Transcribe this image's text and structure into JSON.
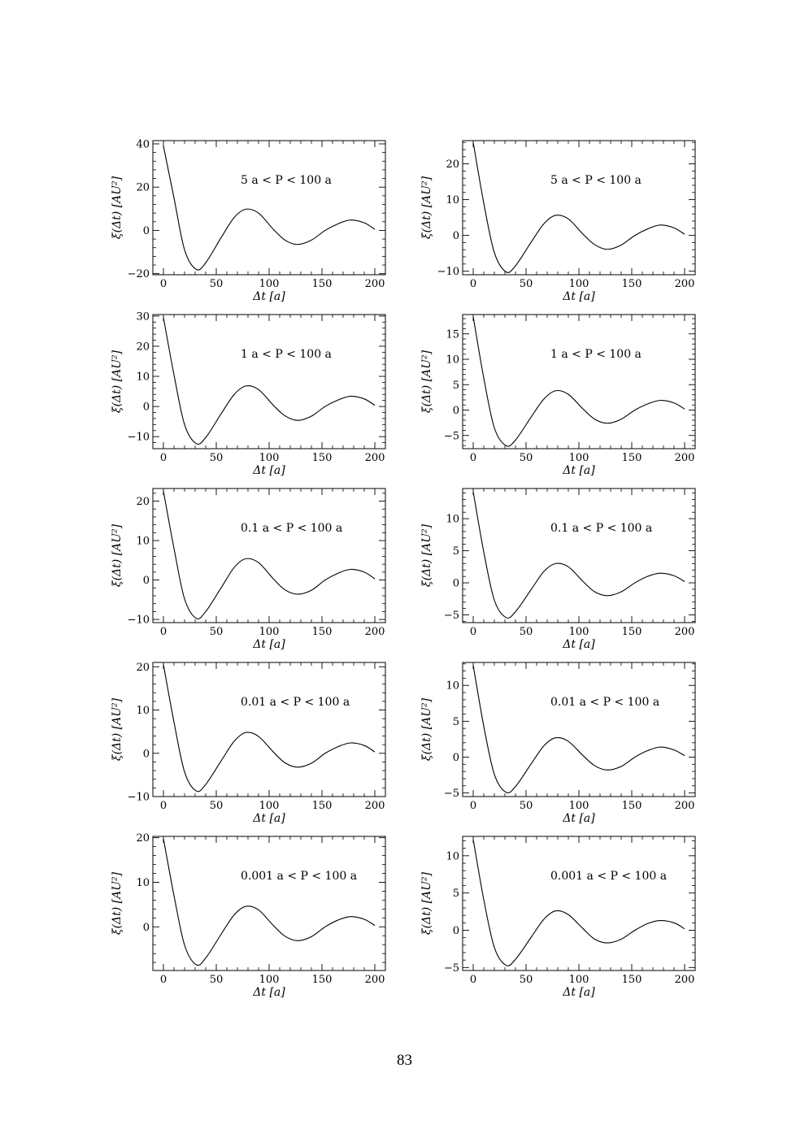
{
  "page": {
    "number": "83"
  },
  "chart_data": [
    {
      "type": "line",
      "annotation": "5 a < P < 100 a",
      "xlabel": "Δt [a]",
      "ylabel": "ξ(Δt) [AU²]",
      "xlim": [
        -10,
        210
      ],
      "ylim": [
        -20.5,
        41.5
      ],
      "xticks": [
        0,
        50,
        100,
        150,
        200
      ],
      "yticks": [
        -20,
        0,
        20,
        40
      ],
      "series": [
        {
          "x": [
            0,
            10,
            20,
            31,
            40,
            55,
            67,
            78,
            90,
            104,
            115,
            127,
            140,
            153,
            165,
            177,
            190,
            200
          ],
          "y": [
            39,
            15,
            -9,
            -18,
            -15,
            -3,
            6,
            9.8,
            8,
            0.5,
            -4.5,
            -6.5,
            -4.5,
            0,
            3,
            4.8,
            3.5,
            0.5
          ]
        }
      ]
    },
    {
      "type": "line",
      "annotation": "5 a < P < 100 a",
      "xlabel": "Δt [a]",
      "ylabel": "ξ(Δt) [AU²]",
      "xlim": [
        -10,
        210
      ],
      "ylim": [
        -11,
        26.5
      ],
      "xticks": [
        0,
        50,
        100,
        150,
        200
      ],
      "yticks": [
        -10,
        0,
        10,
        20
      ],
      "series": [
        {
          "x": [
            0,
            10,
            20,
            31,
            40,
            55,
            67,
            78,
            90,
            104,
            115,
            127,
            140,
            153,
            165,
            177,
            190,
            200
          ],
          "y": [
            26,
            9,
            -4.8,
            -10.2,
            -8.5,
            -1.8,
            3.3,
            5.6,
            4.6,
            0.3,
            -2.6,
            -3.9,
            -2.7,
            0,
            1.8,
            2.9,
            2.1,
            0.3
          ]
        }
      ]
    },
    {
      "type": "line",
      "annotation": "1 a < P < 100 a",
      "xlabel": "Δt [a]",
      "ylabel": "ξ(Δt) [AU²]",
      "xlim": [
        -10,
        210
      ],
      "ylim": [
        -14,
        30.5
      ],
      "xticks": [
        0,
        50,
        100,
        150,
        200
      ],
      "yticks": [
        -10,
        0,
        10,
        20,
        30
      ],
      "series": [
        {
          "x": [
            0,
            10,
            20,
            31,
            40,
            55,
            67,
            78,
            90,
            104,
            115,
            127,
            140,
            153,
            165,
            177,
            190,
            200
          ],
          "y": [
            29.5,
            10.5,
            -6,
            -12.3,
            -10.3,
            -2.2,
            4,
            6.8,
            5.6,
            0.4,
            -3.1,
            -4.6,
            -3.2,
            0,
            2.1,
            3.4,
            2.5,
            0.4
          ]
        }
      ]
    },
    {
      "type": "line",
      "annotation": "1 a < P < 100 a",
      "xlabel": "Δt [a]",
      "ylabel": "ξ(Δt) [AU²]",
      "xlim": [
        -10,
        210
      ],
      "ylim": [
        -7.6,
        18.8
      ],
      "xticks": [
        0,
        50,
        100,
        150,
        200
      ],
      "yticks": [
        -5,
        0,
        5,
        10,
        15
      ],
      "series": [
        {
          "x": [
            0,
            10,
            20,
            31,
            40,
            55,
            67,
            78,
            90,
            104,
            115,
            127,
            140,
            153,
            165,
            177,
            190,
            200
          ],
          "y": [
            18.4,
            6.3,
            -3.5,
            -7,
            -5.9,
            -1.3,
            2.2,
            3.8,
            3.1,
            0.2,
            -1.8,
            -2.6,
            -1.8,
            0,
            1.2,
            1.9,
            1.4,
            0.2
          ]
        }
      ]
    },
    {
      "type": "line",
      "annotation": "0.1 a < P < 100 a",
      "xlabel": "Δt [a]",
      "ylabel": "ξ(Δt) [AU²]",
      "xlim": [
        -10,
        210
      ],
      "ylim": [
        -10.8,
        23.2
      ],
      "xticks": [
        0,
        50,
        100,
        150,
        200
      ],
      "yticks": [
        -10,
        0,
        10,
        20
      ],
      "series": [
        {
          "x": [
            0,
            10,
            20,
            31,
            40,
            55,
            67,
            78,
            90,
            104,
            115,
            127,
            140,
            153,
            165,
            177,
            190,
            200
          ],
          "y": [
            22.5,
            8,
            -4.8,
            -9.7,
            -8,
            -1.8,
            3.2,
            5.4,
            4.4,
            0.3,
            -2.5,
            -3.6,
            -2.6,
            0,
            1.7,
            2.7,
            2,
            0.3
          ]
        }
      ]
    },
    {
      "type": "line",
      "annotation": "0.1 a < P < 100 a",
      "xlabel": "Δt [a]",
      "ylabel": "ξ(Δt) [AU²]",
      "xlim": [
        -10,
        210
      ],
      "ylim": [
        -6.2,
        14.7
      ],
      "xticks": [
        0,
        50,
        100,
        150,
        200
      ],
      "yticks": [
        -5,
        0,
        5,
        10
      ],
      "series": [
        {
          "x": [
            0,
            10,
            20,
            31,
            40,
            55,
            67,
            78,
            90,
            104,
            115,
            127,
            140,
            153,
            165,
            177,
            190,
            200
          ],
          "y": [
            14.2,
            4.8,
            -2.7,
            -5.4,
            -4.5,
            -1,
            1.8,
            3,
            2.5,
            0.2,
            -1.4,
            -2,
            -1.4,
            0,
            1,
            1.5,
            1.1,
            0.2
          ]
        }
      ]
    },
    {
      "type": "line",
      "annotation": "0.01 a < P < 100 a",
      "xlabel": "Δt [a]",
      "ylabel": "ξ(Δt) [AU²]",
      "xlim": [
        -10,
        210
      ],
      "ylim": [
        -10,
        21
      ],
      "xticks": [
        0,
        50,
        100,
        150,
        200
      ],
      "yticks": [
        -10,
        0,
        10,
        20
      ],
      "series": [
        {
          "x": [
            0,
            10,
            20,
            31,
            40,
            55,
            67,
            78,
            90,
            104,
            115,
            127,
            140,
            153,
            165,
            177,
            190,
            200
          ],
          "y": [
            20.5,
            7.2,
            -4.3,
            -8.7,
            -7.2,
            -1.6,
            2.8,
            4.8,
            3.9,
            0.3,
            -2.2,
            -3.2,
            -2.3,
            0,
            1.5,
            2.4,
            1.8,
            0.3
          ]
        }
      ]
    },
    {
      "type": "line",
      "annotation": "0.01 a < P < 100 a",
      "xlabel": "Δt [a]",
      "ylabel": "ξ(Δt) [AU²]",
      "xlim": [
        -10,
        210
      ],
      "ylim": [
        -5.5,
        13.2
      ],
      "xticks": [
        0,
        50,
        100,
        150,
        200
      ],
      "yticks": [
        -5,
        0,
        5,
        10
      ],
      "series": [
        {
          "x": [
            0,
            10,
            20,
            31,
            40,
            55,
            67,
            78,
            90,
            104,
            115,
            127,
            140,
            153,
            165,
            177,
            190,
            200
          ],
          "y": [
            12.8,
            4.3,
            -2.4,
            -4.9,
            -4.1,
            -0.9,
            1.6,
            2.7,
            2.2,
            0.2,
            -1.2,
            -1.8,
            -1.3,
            0,
            0.9,
            1.4,
            1,
            0.2
          ]
        }
      ]
    },
    {
      "type": "line",
      "annotation": "0.001 a < P < 100 a",
      "xlabel": "Δt [a]",
      "ylabel": "ξ(Δt) [AU²]",
      "xlim": [
        -10,
        210
      ],
      "ylim": [
        -9.8,
        20.3
      ],
      "xticks": [
        0,
        50,
        100,
        150,
        200
      ],
      "yticks": [
        0,
        10,
        20
      ],
      "series": [
        {
          "x": [
            0,
            10,
            20,
            31,
            40,
            55,
            67,
            78,
            90,
            104,
            115,
            127,
            140,
            153,
            165,
            177,
            190,
            200
          ],
          "y": [
            19.8,
            7,
            -4.1,
            -8.5,
            -7,
            -1.5,
            2.7,
            4.6,
            3.8,
            0.3,
            -2.1,
            -3.1,
            -2.2,
            0,
            1.5,
            2.3,
            1.7,
            0.3
          ]
        }
      ]
    },
    {
      "type": "line",
      "annotation": "0.001 a < P < 100 a",
      "xlabel": "Δt [a]",
      "ylabel": "ξ(Δt) [AU²]",
      "xlim": [
        -10,
        210
      ],
      "ylim": [
        -5.4,
        12.6
      ],
      "xticks": [
        0,
        50,
        100,
        150,
        200
      ],
      "yticks": [
        -5,
        0,
        5,
        10
      ],
      "series": [
        {
          "x": [
            0,
            10,
            20,
            31,
            40,
            55,
            67,
            78,
            90,
            104,
            115,
            127,
            140,
            153,
            165,
            177,
            190,
            200
          ],
          "y": [
            12.2,
            4.1,
            -2.3,
            -4.7,
            -3.9,
            -0.9,
            1.5,
            2.6,
            2.1,
            0.2,
            -1.2,
            -1.7,
            -1.2,
            0,
            0.9,
            1.3,
            1,
            0.2
          ]
        }
      ]
    }
  ]
}
